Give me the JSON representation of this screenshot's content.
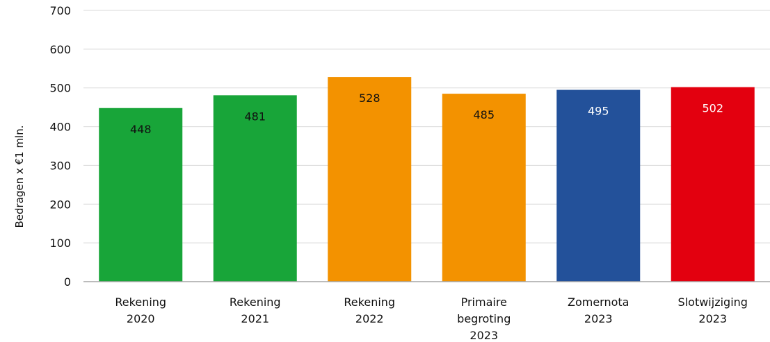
{
  "chart_data": {
    "type": "bar",
    "categories": [
      [
        "Rekening",
        "2020"
      ],
      [
        "Rekening",
        "2021"
      ],
      [
        "Rekening",
        "2022"
      ],
      [
        "Primaire",
        "begroting",
        "2023"
      ],
      [
        "Zomernota",
        "2023"
      ],
      [
        "Slotwijziging",
        "2023"
      ]
    ],
    "values": [
      448,
      481,
      528,
      485,
      495,
      502
    ],
    "value_labels": [
      "448",
      "481",
      "528",
      "485",
      "495",
      "502"
    ],
    "bar_colors": [
      "#18a539",
      "#18a539",
      "#f39200",
      "#f39200",
      "#23519a",
      "#e3000f"
    ],
    "label_colors": [
      "#111111",
      "#111111",
      "#111111",
      "#111111",
      "#ffffff",
      "#ffffff"
    ],
    "ylabel": "Bedragen x €1 mln.",
    "xlabel": "",
    "title": "",
    "ylim": [
      0,
      700
    ],
    "yticks": [
      0,
      100,
      200,
      300,
      400,
      500,
      600,
      700
    ],
    "grid": true,
    "legend": "none"
  }
}
